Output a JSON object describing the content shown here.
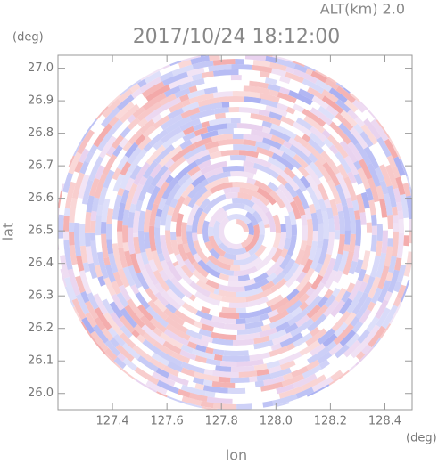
{
  "chart_data": {
    "type": "ppi",
    "title": "2017/10/24 18:12:00",
    "altitude_label": "ALT(km) 2.0",
    "x_label": "lon",
    "y_label": "lat",
    "x_unit": "(deg)",
    "y_unit": "(deg)",
    "xlim": [
      127.2,
      128.5
    ],
    "ylim": [
      25.95,
      27.04
    ],
    "xticks": [
      127.4,
      127.6,
      127.8,
      {
        "value": 128.0,
        "label": "128.0"
      },
      128.2,
      128.4
    ],
    "yticks": [
      {
        "value": 26.0,
        "label": "26.0"
      },
      26.1,
      26.2,
      26.3,
      26.4,
      26.5,
      26.6,
      26.7,
      26.8,
      26.9,
      {
        "value": 27.0,
        "label": "27.0"
      }
    ]
  }
}
